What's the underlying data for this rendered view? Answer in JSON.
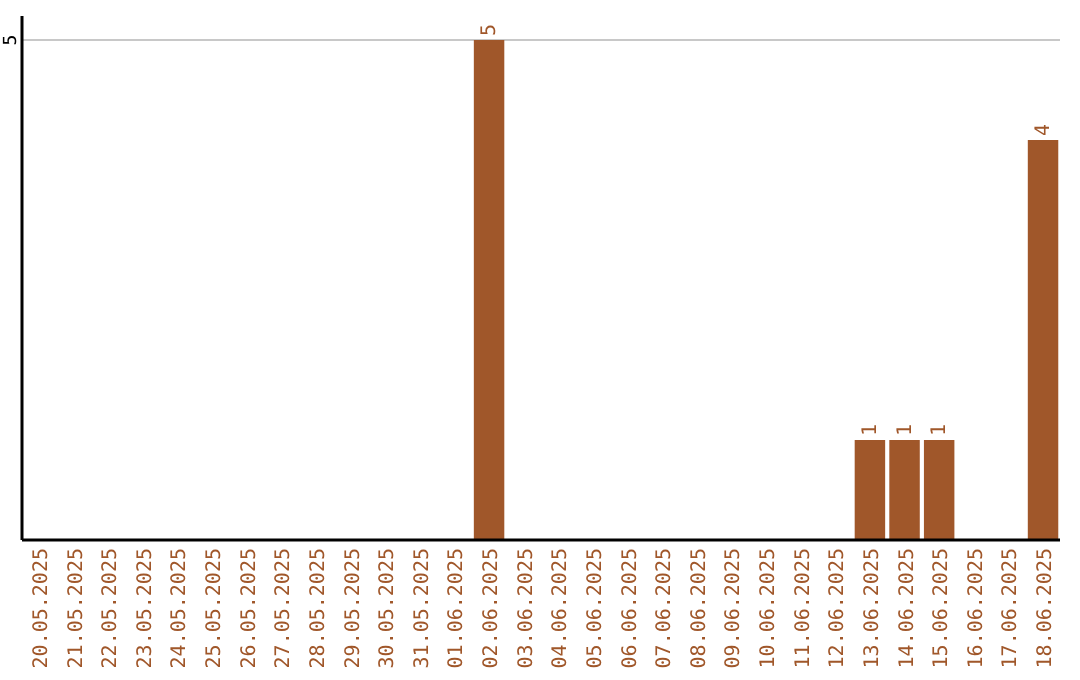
{
  "chart_data": {
    "type": "bar",
    "ylim": [
      0,
      5
    ],
    "categories": [
      "20.05.2025",
      "21.05.2025",
      "22.05.2025",
      "23.05.2025",
      "24.05.2025",
      "25.05.2025",
      "26.05.2025",
      "27.05.2025",
      "28.05.2025",
      "29.05.2025",
      "30.05.2025",
      "31.05.2025",
      "01.06.2025",
      "02.06.2025",
      "03.06.2025",
      "04.06.2025",
      "05.06.2025",
      "06.06.2025",
      "07.06.2025",
      "08.06.2025",
      "09.06.2025",
      "10.06.2025",
      "11.06.2025",
      "12.06.2025",
      "13.06.2025",
      "14.06.2025",
      "15.06.2025",
      "16.06.2025",
      "17.06.2025",
      "18.06.2025"
    ],
    "values": [
      null,
      null,
      null,
      null,
      null,
      null,
      null,
      null,
      null,
      null,
      null,
      null,
      null,
      5,
      null,
      null,
      null,
      null,
      null,
      null,
      null,
      null,
      null,
      null,
      1,
      1,
      1,
      null,
      null,
      4
    ],
    "data_labels": true,
    "color": "#a0572a",
    "ref_lines": [
      {
        "axis": "y",
        "value": 5,
        "label": "5",
        "color": "#c8c8c8"
      }
    ]
  }
}
